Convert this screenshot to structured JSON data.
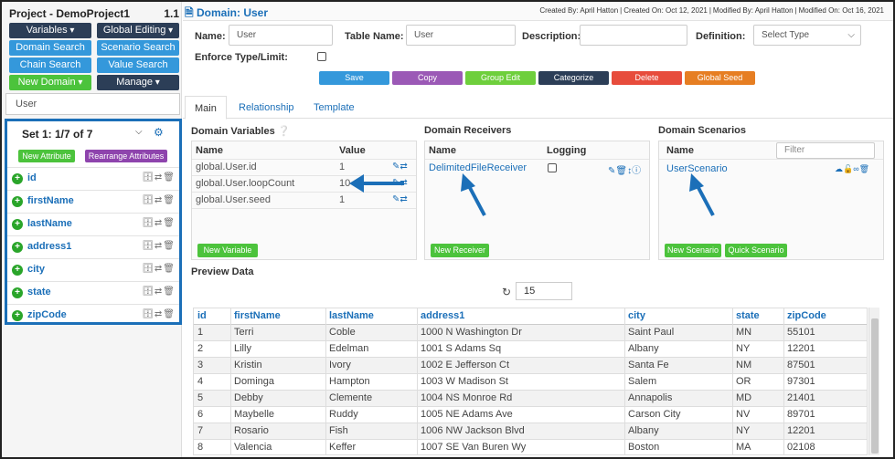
{
  "project": {
    "title": "Project - DemoProject1",
    "version": "1.1"
  },
  "left_buttons": {
    "variables": "Variables",
    "global_editing": "Global Editing",
    "domain_search": "Domain Search",
    "scenario_search": "Scenario Search",
    "chain_search": "Chain Search",
    "value_search": "Value Search",
    "new_domain": "New Domain",
    "manage": "Manage"
  },
  "domain_select": "User",
  "set": {
    "label": "Set 1: 1/7 of 7",
    "new_attribute": "New Attribute",
    "rearrange": "Rearrange Attributes"
  },
  "attributes": [
    "id",
    "firstName",
    "lastName",
    "address1",
    "city",
    "state",
    "zipCode"
  ],
  "header": {
    "domain_title": "Domain: User",
    "created_by": "Created By: April Hatton",
    "created_on": "Created On: Oct 12, 2021",
    "modified_by": "Modified By: April Hatton",
    "modified_on": "Modified On: Oct 16, 2021"
  },
  "form": {
    "name_label": "Name:",
    "name_value": "User",
    "table_name_label": "Table Name:",
    "table_name_value": "User",
    "description_label": "Description:",
    "definition_label": "Definition:",
    "definition_placeholder": "Select Type",
    "enforce_label": "Enforce Type/Limit:"
  },
  "actions": {
    "save": "Save",
    "copy": "Copy",
    "group_edit": "Group Edit",
    "categorize": "Categorize",
    "delete": "Delete",
    "global_seed": "Global Seed"
  },
  "colors": {
    "save": "#3498db",
    "copy": "#9b59b6",
    "group_edit": "#6ecf3c",
    "categorize": "#2c3e57",
    "delete": "#e74c3c",
    "global_seed": "#e67e22"
  },
  "tabs": [
    "Main",
    "Relationship",
    "Template"
  ],
  "domain_variables": {
    "title": "Domain Variables",
    "col_name": "Name",
    "col_value": "Value",
    "rows": [
      {
        "name": "global.User.id",
        "value": "1"
      },
      {
        "name": "global.User.loopCount",
        "value": "10"
      },
      {
        "name": "global.User.seed",
        "value": "1"
      }
    ],
    "new_button": "New Variable"
  },
  "domain_receivers": {
    "title": "Domain Receivers",
    "col_name": "Name",
    "col_logging": "Logging",
    "rows": [
      {
        "name": "DelimitedFileReceiver"
      }
    ],
    "new_button": "New Receiver"
  },
  "domain_scenarios": {
    "title": "Domain Scenarios",
    "col_name": "Name",
    "filter_placeholder": "Filter",
    "rows": [
      {
        "name": "UserScenario"
      }
    ],
    "new_scenario": "New Scenario",
    "quick_scenario": "Quick Scenario"
  },
  "preview": {
    "title": "Preview Data",
    "count": "15",
    "columns": [
      "id",
      "firstName",
      "lastName",
      "address1",
      "city",
      "state",
      "zipCode"
    ],
    "rows": [
      [
        "1",
        "Terri",
        "Coble",
        "1000 N Washington Dr",
        "Saint Paul",
        "MN",
        "55101"
      ],
      [
        "2",
        "Lilly",
        "Edelman",
        "1001 S Adams Sq",
        "Albany",
        "NY",
        "12201"
      ],
      [
        "3",
        "Kristin",
        "Ivory",
        "1002 E Jefferson Ct",
        "Santa Fe",
        "NM",
        "87501"
      ],
      [
        "4",
        "Dominga",
        "Hampton",
        "1003 W Madison St",
        "Salem",
        "OR",
        "97301"
      ],
      [
        "5",
        "Debby",
        "Clemente",
        "1004 NS Monroe Rd",
        "Annapolis",
        "MD",
        "21401"
      ],
      [
        "6",
        "Maybelle",
        "Ruddy",
        "1005 NE Adams Ave",
        "Carson City",
        "NV",
        "89701"
      ],
      [
        "7",
        "Rosario",
        "Fish",
        "1006 NW Jackson Blvd",
        "Albany",
        "NY",
        "12201"
      ],
      [
        "8",
        "Valencia",
        "Keffer",
        "1007 SE Van Buren Wy",
        "Boston",
        "MA",
        "02108"
      ]
    ]
  }
}
